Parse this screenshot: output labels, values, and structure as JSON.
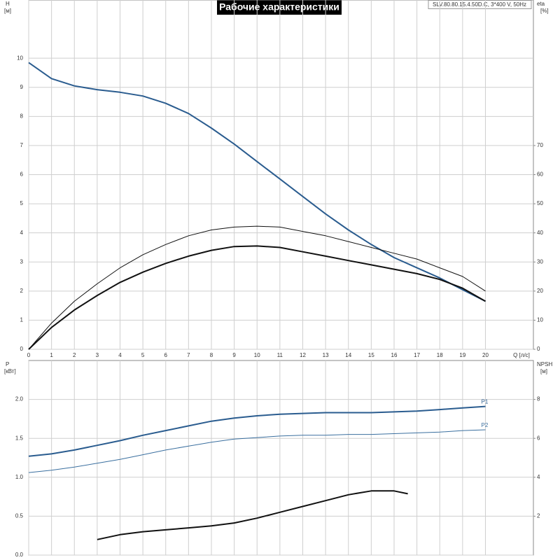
{
  "chart_data": [
    {
      "type": "line",
      "title": "Рабочие характеристики",
      "subtitle": "SLV.80.80.15.4.50D.C, 3*400 V, 50Hz",
      "xlabel": "Q [л/с]",
      "ylabel": "H",
      "yunit": "[м]",
      "y2label": "eta",
      "y2unit": "[%]",
      "x": [
        0,
        1,
        2,
        3,
        4,
        5,
        6,
        7,
        8,
        9,
        10,
        11,
        12,
        13,
        14,
        15,
        16,
        17,
        18,
        19,
        20
      ],
      "xlim": [
        0,
        22.1
      ],
      "xticks": [
        0,
        1,
        2,
        3,
        4,
        5,
        6,
        7,
        8,
        9,
        10,
        11,
        12,
        13,
        14,
        15,
        16,
        17,
        18,
        19,
        20
      ],
      "ylim": [
        0,
        12
      ],
      "yticks": [
        0,
        1,
        2,
        3,
        4,
        5,
        6,
        7,
        8,
        9,
        10
      ],
      "y2lim": [
        0,
        120
      ],
      "y2ticks": [
        0,
        10,
        20,
        30,
        40,
        50,
        60,
        70
      ],
      "grid": true,
      "xtick_labels": true,
      "series": [
        {
          "color": "#2a5c8f",
          "width": 2,
          "values": [
            9.85,
            9.3,
            9.05,
            8.92,
            8.83,
            8.7,
            8.45,
            8.1,
            7.6,
            7.05,
            6.45,
            5.85,
            5.25,
            4.65,
            4.1,
            3.6,
            3.15,
            2.8,
            2.45,
            2.05,
            1.65
          ]
        },
        {
          "color": "#111111",
          "width": 1,
          "axis": "y2",
          "values": [
            0,
            9,
            16.5,
            22.5,
            28,
            32.5,
            36,
            39,
            41,
            42,
            42.3,
            42,
            40.5,
            39,
            37,
            35,
            33,
            31,
            28,
            25,
            20
          ]
        },
        {
          "color": "#111111",
          "width": 2,
          "axis": "y2",
          "values": [
            0,
            7.5,
            13.5,
            18.5,
            23,
            26.5,
            29.5,
            32,
            34,
            35.3,
            35.5,
            35,
            33.5,
            32,
            30.5,
            29,
            27.5,
            26,
            24,
            21,
            16.5
          ]
        }
      ]
    },
    {
      "type": "line",
      "ylabel": "P",
      "yunit": "[кВт]",
      "y2label": "NPSH",
      "y2unit": "[м]",
      "x": [
        0,
        1,
        2,
        3,
        4,
        5,
        6,
        7,
        8,
        9,
        10,
        11,
        12,
        13,
        14,
        15,
        16,
        17,
        18,
        19,
        20
      ],
      "xlim": [
        0,
        22.1
      ],
      "xticks": [
        0,
        1,
        2,
        3,
        4,
        5,
        6,
        7,
        8,
        9,
        10,
        11,
        12,
        13,
        14,
        15,
        16,
        17,
        18,
        19,
        20
      ],
      "ylim": [
        0,
        2.5
      ],
      "yticks": [
        {
          "value": 0,
          "label": "0.0"
        },
        0.5,
        {
          "value": 1,
          "label": "1.0"
        },
        1.5,
        {
          "value": 2,
          "label": "2.0"
        }
      ],
      "y2lim": [
        0,
        10
      ],
      "y2ticks": [
        2,
        4,
        6,
        8
      ],
      "grid": true,
      "xtick_labels": false,
      "series": [
        {
          "name": "P1",
          "color": "#2a5c8f",
          "width": 2,
          "values": [
            1.27,
            1.3,
            1.35,
            1.41,
            1.47,
            1.54,
            1.6,
            1.66,
            1.72,
            1.76,
            1.79,
            1.81,
            1.82,
            1.83,
            1.83,
            1.83,
            1.84,
            1.85,
            1.87,
            1.89,
            1.91
          ]
        },
        {
          "name": "P2",
          "color": "#3a6f9f",
          "width": 1,
          "values": [
            1.06,
            1.09,
            1.13,
            1.18,
            1.23,
            1.29,
            1.35,
            1.4,
            1.45,
            1.49,
            1.51,
            1.53,
            1.54,
            1.54,
            1.55,
            1.55,
            1.56,
            1.57,
            1.58,
            1.6,
            1.61
          ]
        },
        {
          "color": "#111111",
          "width": 2,
          "axis": "y2",
          "x": [
            3,
            4,
            5,
            6,
            7,
            8,
            9,
            10,
            11,
            12,
            13,
            14,
            15,
            16,
            16.6
          ],
          "values": [
            0.8,
            1.05,
            1.2,
            1.3,
            1.4,
            1.5,
            1.65,
            1.9,
            2.2,
            2.5,
            2.8,
            3.1,
            3.3,
            3.3,
            3.15
          ]
        }
      ]
    }
  ]
}
